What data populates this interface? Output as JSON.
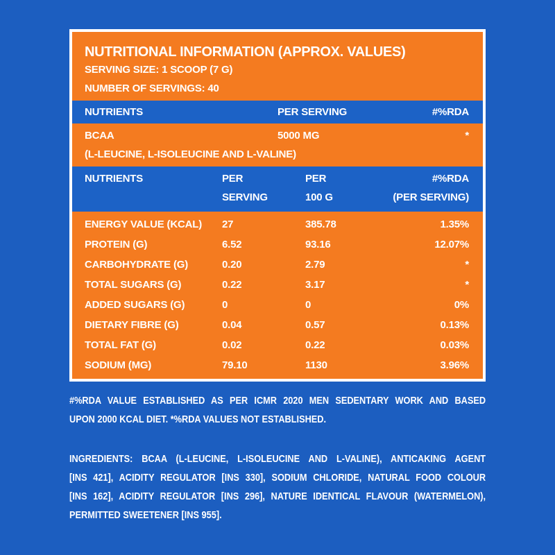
{
  "header": {
    "title": "NUTRITIONAL INFORMATION (APPROX. VALUES)",
    "serving_size": "SERVING SIZE: 1 SCOOP (7 G)",
    "servings": "NUMBER OF SERVINGS: 40"
  },
  "table1": {
    "header": [
      "NUTRIENTS",
      "PER SERVING",
      "#%RDA"
    ],
    "row": [
      "BCAA",
      "5000 MG",
      "*"
    ],
    "note": "(L-LEUCINE, L-ISOLEUCINE AND L-VALINE)"
  },
  "table2": {
    "header": [
      [
        "NUTRIENTS"
      ],
      [
        "PER",
        "SERVING"
      ],
      [
        "PER",
        "100 G"
      ],
      [
        "#%RDA",
        "(PER SERVING)"
      ]
    ],
    "rows": [
      [
        "ENERGY VALUE (KCAL)",
        "27",
        "385.78",
        "1.35%"
      ],
      [
        "PROTEIN (G)",
        "6.52",
        "93.16",
        "12.07%"
      ],
      [
        "CARBOHYDRATE (G)",
        "0.20",
        "2.79",
        "*"
      ],
      [
        "TOTAL SUGARS (G)",
        "0.22",
        "3.17",
        "*"
      ],
      [
        "ADDED SUGARS (G)",
        "0",
        "0",
        "0%"
      ],
      [
        "DIETARY FIBRE (G)",
        "0.04",
        "0.57",
        "0.13%"
      ],
      [
        "TOTAL FAT (G)",
        "0.02",
        "0.22",
        "0.03%"
      ],
      [
        "SODIUM (MG)",
        "79.10",
        "1130",
        "3.96%"
      ]
    ]
  },
  "footnote": [
    "#%RDA VALUE ESTABLISHED AS PER ICMR 2020 MEN SEDENTARY WORK AND BASED",
    "UPON 2000 KCAL DIET. *%RDA VALUES NOT ESTABLISHED."
  ],
  "ingredients": {
    "label": "INGREDIENTS:",
    "lines": [
      " BCAA (L-LEUCINE, L-ISOLEUCINE AND L-VALINE),  ANTICAKING AGENT",
      "[INS 421], ACIDITY REGULATOR [INS 330], SODIUM CHLORIDE, NATURAL FOOD COLOUR",
      "[INS 162], ACIDITY REGULATOR [INS 296], NATURE IDENTICAL FLAVOUR (WATERMELON),",
      "PERMITTED SWEETENER [INS 955]."
    ]
  }
}
